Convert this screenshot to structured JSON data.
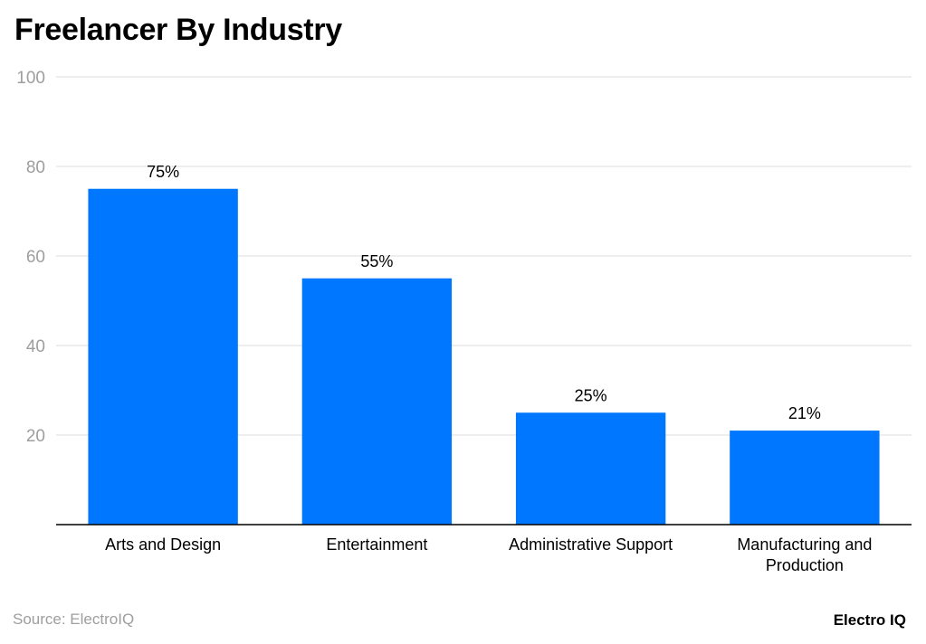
{
  "title": "Freelancer By Industry",
  "source": "Source: ElectroIQ",
  "logo": "Electro IQ",
  "colors": {
    "bar": "#0077ff",
    "grid": "#dddddd",
    "axis_text": "#9e9e9e",
    "axis_line": "#000000"
  },
  "chart_data": {
    "type": "bar",
    "categories": [
      [
        "Arts and Design"
      ],
      [
        "Entertainment"
      ],
      [
        "Administrative Support"
      ],
      [
        "Manufacturing and",
        "Production"
      ]
    ],
    "values": [
      75,
      55,
      25,
      21
    ],
    "value_labels": [
      "75%",
      "55%",
      "25%",
      "21%"
    ],
    "yticks": [
      20,
      40,
      60,
      80,
      100
    ],
    "ylim": [
      0,
      100
    ],
    "grid": true,
    "xlabel": "",
    "ylabel": ""
  }
}
